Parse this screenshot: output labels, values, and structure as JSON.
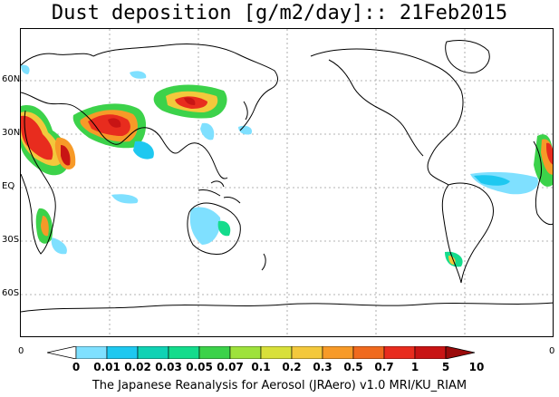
{
  "title": "Dust deposition [g/m2/day]:: 21Feb2015",
  "map": {
    "lat_labels": [
      "60N",
      "30N",
      "EQ",
      "30S",
      "60S"
    ],
    "corner_left": "0",
    "corner_right": "0"
  },
  "colorbar": {
    "labels": [
      "0",
      "0.01",
      "0.02",
      "0.03",
      "0.05",
      "0.07",
      "0.1",
      "0.2",
      "0.3",
      "0.5",
      "0.7",
      "1",
      "5",
      "10"
    ],
    "colors": [
      "#ffffff",
      "#7fe0ff",
      "#1ec8f0",
      "#10d2b4",
      "#14dc8c",
      "#3cd24a",
      "#9ee23c",
      "#d8e03a",
      "#f3c83c",
      "#f79a28",
      "#f06a1e",
      "#e82c1e",
      "#c81414",
      "#9a0a0a"
    ]
  },
  "footer": "The Japanese Reanalysis for Aerosol (JRAero) v1.0 MRI/KU_RIAM"
}
